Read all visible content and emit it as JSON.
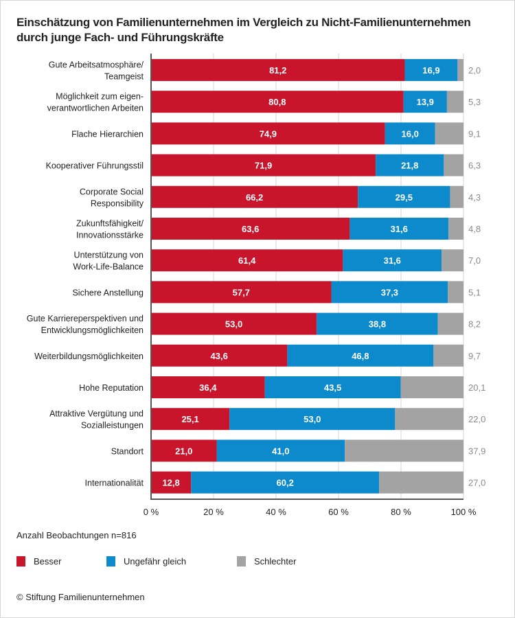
{
  "chart_data": {
    "type": "bar",
    "orientation": "horizontal",
    "stacked": true,
    "title": "Einschätzung von Familienunternehmen im Vergleich zu Nicht-Familienunternehmen durch junge Fach- und Führungskräfte",
    "categories": [
      "Gute Arbeitsatmosphäre/\nTeamgeist",
      "Möglichkeit zum eigen-\nverantwortlichen Arbeiten",
      "Flache Hierarchien",
      "Kooperativer Führungsstil",
      "Corporate Social\nResponsibility",
      "Zukunftsfähigkeit/\nInnovationsstärke",
      "Unterstützung von\nWork-Life-Balance",
      "Sichere Anstellung",
      "Gute Karriereperspektiven und\nEntwicklungsmöglichkeiten",
      "Weiterbildungsmöglichkeiten",
      "Hohe Reputation",
      "Attraktive Vergütung und\nSozialleistungen",
      "Standort",
      "Internationalität"
    ],
    "series": [
      {
        "name": "Besser",
        "color": "#c8152b",
        "values": [
          81.2,
          80.8,
          74.9,
          71.9,
          66.2,
          63.6,
          61.4,
          57.7,
          53.0,
          43.6,
          36.4,
          25.1,
          21.0,
          12.8
        ]
      },
      {
        "name": "Ungefähr gleich",
        "color": "#0d8acb",
        "values": [
          16.9,
          13.9,
          16.0,
          21.8,
          29.5,
          31.6,
          31.6,
          37.3,
          38.8,
          46.8,
          43.5,
          53.0,
          41.0,
          60.2
        ]
      },
      {
        "name": "Schlechter",
        "color": "#a3a3a3",
        "values": [
          2.0,
          5.3,
          9.1,
          6.3,
          4.3,
          4.8,
          7.0,
          5.1,
          8.2,
          9.7,
          20.1,
          22.0,
          37.9,
          27.0
        ]
      }
    ],
    "xlim": [
      0,
      100
    ],
    "xticks": [
      "0 %",
      "20 %",
      "40 %",
      "60 %",
      "80 %",
      "100 %"
    ],
    "grid": true,
    "legend": "bottom-left",
    "note": "Anzahl Beobachtungen n=816",
    "source": "© Stiftung Familienunternehmen"
  }
}
